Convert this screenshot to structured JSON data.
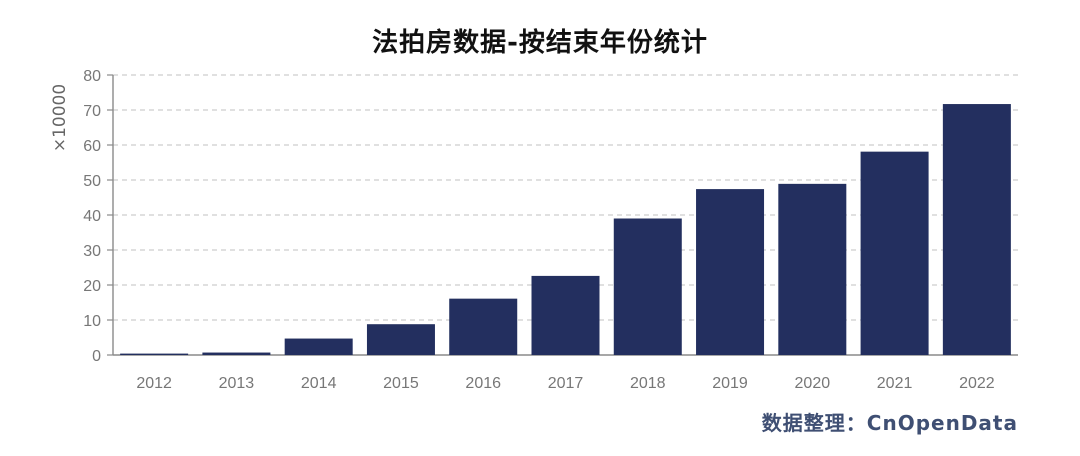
{
  "title": "法拍房数据-按结束年份统计",
  "source_note": "数据整理：CnOpenData",
  "colors": {
    "bar": "#232f5f",
    "grid": "#d6d6d6",
    "axis": "#8a8a8a",
    "text": "#777777"
  },
  "chart_data": {
    "type": "bar",
    "title": "法拍房数据-按结束年份统计",
    "xlabel": "",
    "ylabel": "",
    "y_unit_label": "×10000",
    "categories": [
      "2012",
      "2013",
      "2014",
      "2015",
      "2016",
      "2017",
      "2018",
      "2019",
      "2020",
      "2021",
      "2022"
    ],
    "values": [
      0.4,
      0.7,
      4.7,
      8.8,
      16.1,
      22.6,
      39.0,
      47.4,
      48.9,
      58.1,
      71.7
    ],
    "y_ticks": [
      "0",
      "10",
      "20",
      "30",
      "40",
      "50",
      "60",
      "70",
      "80"
    ],
    "ylim": [
      0,
      80
    ],
    "grid": true,
    "legend": "none"
  }
}
